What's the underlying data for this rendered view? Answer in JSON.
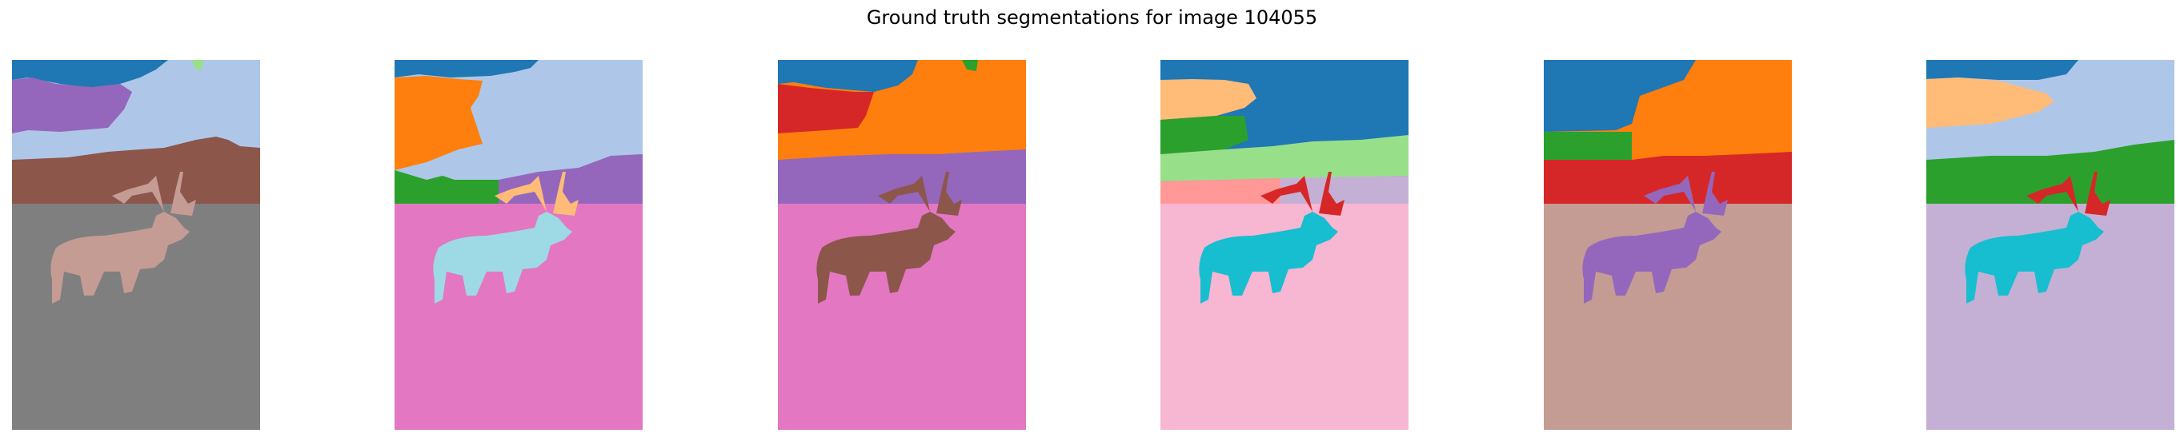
{
  "figure": {
    "title": "Ground truth segmentations for image 104055"
  },
  "palette": {
    "blue": "#1f77b4",
    "light_blue": "#aec7e8",
    "orange": "#ff7f0e",
    "light_orange": "#ffbb78",
    "green": "#2ca02c",
    "light_green": "#98df8a",
    "red": "#d62728",
    "pink_red": "#ff9896",
    "purple": "#9467bd",
    "lavender": "#c5b0d5",
    "brown": "#8c564b",
    "rosy_brown": "#c49c94",
    "magenta": "#e377c2",
    "light_pink": "#f7b6d2",
    "gray": "#7f7f7f",
    "olive": "#bcbd22",
    "cyan": "#17becf",
    "light_cyan": "#9edae5"
  },
  "panels": [
    {
      "name": "segmentation-1",
      "sky": "#aec7e8",
      "corner": "#1f77b4",
      "band_a": "#9467bd",
      "band_b": "#8c564b",
      "ground": "#7f7f7f",
      "elk": "#c49c94",
      "antler": "#c49c94",
      "accent": "#98df8a"
    },
    {
      "name": "segmentation-2",
      "sky": "#aec7e8",
      "corner": "#1f77b4",
      "band_a": "#ff7f0e",
      "band_b": "#2ca02c",
      "ground": "#e377c2",
      "elk": "#9edae5",
      "antler": "#ffbb78",
      "accent": "#9467bd"
    },
    {
      "name": "segmentation-3",
      "sky": "#ff7f0e",
      "corner": "#1f77b4",
      "band_a": "#d62728",
      "band_b": "#9467bd",
      "ground": "#e377c2",
      "elk": "#8c564b",
      "antler": "#8c564b",
      "accent": "#2ca02c"
    },
    {
      "name": "segmentation-4",
      "sky": "#1f77b4",
      "corner": "#1f77b4",
      "band_a": "#ffbb78",
      "band_b": "#2ca02c",
      "ground": "#f7b6d2",
      "elk": "#17becf",
      "antler": "#d62728",
      "accent": "#98df8a"
    },
    {
      "name": "segmentation-5",
      "sky": "#ff7f0e",
      "corner": "#1f77b4",
      "band_a": "#2ca02c",
      "band_b": "#d62728",
      "ground": "#c49c94",
      "elk": "#9467bd",
      "antler": "#9467bd",
      "accent": "#d62728"
    },
    {
      "name": "segmentation-6",
      "sky": "#aec7e8",
      "corner": "#1f77b4",
      "band_a": "#ffbb78",
      "band_b": "#2ca02c",
      "ground": "#c5b0d5",
      "elk": "#17becf",
      "antler": "#d62728",
      "accent": "#2ca02c"
    }
  ]
}
